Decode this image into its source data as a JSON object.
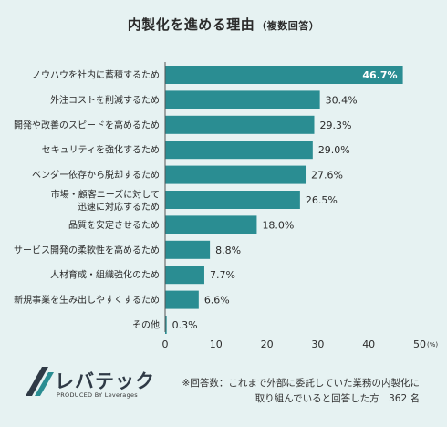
{
  "header": {
    "title": "内製化を進める理由",
    "subtitle": "（複数回答）"
  },
  "chart_data": {
    "type": "bar",
    "orientation": "horizontal",
    "categories": [
      [
        "ノウハウを社内に蓄積するため"
      ],
      [
        "外注コストを削減するため"
      ],
      [
        "開発や改善のスピードを高めるため"
      ],
      [
        "セキュリティを強化するため"
      ],
      [
        "ベンダー依存から脱却するため"
      ],
      [
        "市場・顧客ニーズに対して",
        "迅速に対応するため"
      ],
      [
        "品質を安定させるため"
      ],
      [
        "サービス開発の柔軟性を高めるため"
      ],
      [
        "人材育成・組織強化のため"
      ],
      [
        "新規事業を生み出しやすくするため"
      ],
      [
        "その他"
      ]
    ],
    "values": [
      46.7,
      30.4,
      29.3,
      29.0,
      27.6,
      26.5,
      18.0,
      8.8,
      7.7,
      6.6,
      0.3
    ],
    "value_labels": [
      "46.7%",
      "30.4%",
      "29.3%",
      "29.0%",
      "27.6%",
      "26.5%",
      "18.0%",
      "8.8%",
      "7.7%",
      "6.6%",
      "0.3%"
    ],
    "xlim": [
      0,
      50
    ],
    "x_ticks": [
      "0",
      "10",
      "20",
      "30",
      "40",
      "50"
    ],
    "x_unit": "(%)",
    "bar_color": "#2a8d92",
    "grid": false
  },
  "logo": {
    "name": "レバテック",
    "tagline": "PRODUCED BY Leverages"
  },
  "footnote": {
    "line1": "※回答数：これまで外部に委託していた業務の内製化に",
    "line2": "取り組んでいると回答した方　362 名"
  }
}
